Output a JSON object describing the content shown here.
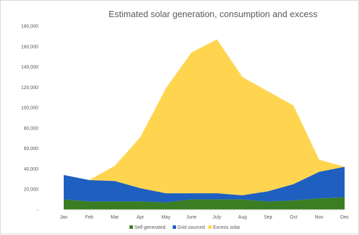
{
  "chart_data": {
    "type": "area",
    "stacked": true,
    "title": "Estimated solar generation, consumption and excess",
    "categories": [
      "Jan",
      "Feb",
      "Mar",
      "Apr",
      "May",
      "June",
      "July",
      "Aug",
      "Sep",
      "Oct",
      "Nov",
      "Dec"
    ],
    "y_tick_labels": [
      "-",
      "20,000",
      "40,000",
      "60,000",
      "80,000",
      "100,000",
      "120,000",
      "140,000",
      "160,000",
      "180,000"
    ],
    "ylim": [
      0,
      180000
    ],
    "grid": false,
    "legend_position": "bottom",
    "series": [
      {
        "name": "Self generated",
        "color": "#3a7d22",
        "values": [
          10000,
          8000,
          8000,
          8000,
          7000,
          10000,
          10000,
          10000,
          8000,
          9000,
          11000,
          12000
        ]
      },
      {
        "name": "Grid sourced",
        "color": "#1f5fbf",
        "values": [
          24000,
          21000,
          20000,
          13000,
          9000,
          6000,
          6000,
          4000,
          10000,
          16000,
          26000,
          30000
        ]
      },
      {
        "name": "Excess solar",
        "color": "#ffd54f",
        "values": [
          0,
          0,
          15000,
          50000,
          103000,
          138000,
          151000,
          116000,
          98000,
          77000,
          12000,
          0
        ]
      }
    ]
  }
}
